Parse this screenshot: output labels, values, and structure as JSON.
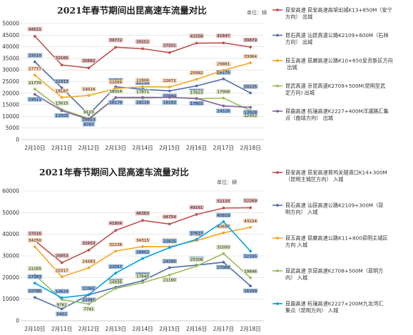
{
  "chart_data": [
    {
      "type": "line",
      "title": "2021年春节期间出昆高速车流量对比",
      "unit": "单位：辆",
      "categories": [
        "2月10日",
        "2月11日",
        "2月12日",
        "2月13日",
        "2月14日",
        "2月15日",
        "2月16日",
        "2月17日",
        "2月18日"
      ],
      "ylim": [
        0,
        50000
      ],
      "yticks": [
        0,
        5000,
        10000,
        15000,
        20000,
        25000,
        30000,
        35000,
        40000,
        45000,
        50000
      ],
      "grid": true,
      "legend": "right",
      "series": [
        {
          "name": "昆安高速 昆安高速高架出城K13+850M（安宁方向） 出城",
          "color": "#c0504d",
          "label_bg": "#e6b9b8",
          "values": [
            44521,
            32165,
            30882,
            39772,
            39152,
            37501,
            41558,
            41647,
            39879
          ]
        },
        {
          "name": "昆石高速 汕昆高速公路K2109+600M（石林方向） 出城",
          "color": "#4f6fae",
          "label_bg": "#95b3d7",
          "values": [
            33510,
            22313,
            10823,
            22765,
            21730,
            20984,
            23169,
            26175,
            20125
          ]
        },
        {
          "name": "昆玉高速 昆磨高速公路K10+650呈贡新区方向 出城",
          "color": "#f5a623",
          "label_bg": "#fcd5b4",
          "values": [
            27777,
            18187,
            19024,
            22009,
            22806,
            22672,
            25992,
            29881,
            33064
          ]
        },
        {
          "name": "昆武高速 京昆高速K2709+500M(昆明至武定方向) 出城",
          "color": "#9bbb59",
          "label_bg": "#d7e4bd",
          "values": [
            21770,
            13015,
            9123,
            18014,
            17871,
            18218,
            17623,
            17908,
            12503
          ]
        },
        {
          "name": "昆曲高速 杭瑞高速K2227+400M洋浦路汇集点（曲靖方向） 出城",
          "color": "#8064a2",
          "label_bg": "#8eb4e3",
          "values": [
            19511,
            12503,
            8787,
            18179,
            18218,
            18183,
            17802,
            14526,
            13928
          ]
        }
      ]
    },
    {
      "type": "line",
      "title": "2021年春节期间入昆高速车流量对比",
      "unit": "单位：辆",
      "categories": [
        "2月10日",
        "2月11日",
        "2月12日",
        "2月13日",
        "2月14日",
        "2月15日",
        "2月16日",
        "2月17日",
        "2月18日"
      ],
      "ylim": [
        0,
        60000
      ],
      "yticks": [
        0,
        10000,
        20000,
        30000,
        40000,
        50000,
        60000
      ],
      "grid": true,
      "legend": "right",
      "series": [
        {
          "name": "昆安高速 昆安高速普鸡关隧道口K14+300M（昆明主城区方向） 入城",
          "color": "#c0504d",
          "label_bg": "#e6b9b8",
          "values": [
            37016,
            26853,
            32653,
            41804,
            46383,
            44754,
            49161,
            52133,
            52269
          ]
        },
        {
          "name": "昆石高速 汕昆高速公路K2109+300M（昆明方向） 入城",
          "color": "#4f6fae",
          "label_bg": "#95b3d7",
          "values": [
            10786,
            5452,
            11981,
            15475,
            18510,
            24580,
            25694,
            27068,
            16109
          ]
        },
        {
          "name": "昆玉高速 昆磨高速公路K11+800昆明主城区方向 入城",
          "color": "#f5a623",
          "label_bg": "#fcd5b4",
          "values": [
            34250,
            20317,
            24483,
            32236,
            34315,
            34252,
            37116,
            40657,
            43224
          ]
        },
        {
          "name": "昆武高速 京昆高速K2708+500M（昆明方向） 入城",
          "color": "#9bbb59",
          "label_bg": "#d7e4bd",
          "values": [
            21165,
            9761,
            7741,
            14936,
            17640,
            21160,
            25308,
            31050,
            19846
          ]
        },
        {
          "name": "昆曲高速 杭瑞高速K2227+200M九龙湾汇集点（昆明方向） 入城",
          "color": "#00a0e9",
          "label_bg": "#8eb4e3",
          "values": [
            17383,
            10624,
            12061,
            22057,
            28802,
            33835,
            37627,
            45819,
            32185
          ]
        }
      ]
    }
  ]
}
